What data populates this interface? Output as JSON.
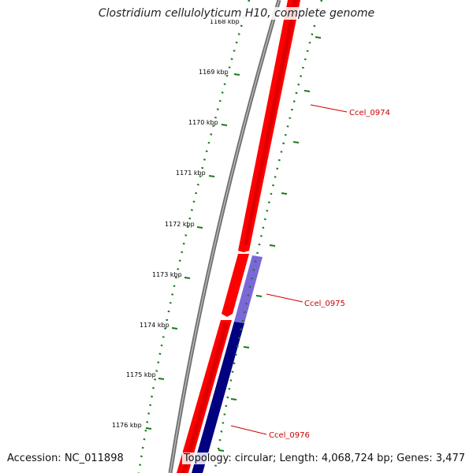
{
  "title": "Clostridium cellulolyticum H10, complete genome",
  "footer": {
    "accession": "Accession: NC_011898",
    "topology": "Topology: circular; Length: 4,068,724 bp; Genes: 3,477"
  },
  "colors": {
    "backbone": "#7a7a7a",
    "forward_gene": "#ff0000",
    "reverse_gene": "#000080",
    "reverse_gene_light": "#7b68d8",
    "tick": "#1a7a1a",
    "gene_label": "#cc0000"
  },
  "ticks": [
    {
      "label": "1168 kbp"
    },
    {
      "label": "1169 kbp"
    },
    {
      "label": "1170 kbp"
    },
    {
      "label": "1171 kbp"
    },
    {
      "label": "1172 kbp"
    },
    {
      "label": "1173 kbp"
    },
    {
      "label": "1174 kbp"
    },
    {
      "label": "1175 kbp"
    },
    {
      "label": "1176 kbp"
    }
  ],
  "genes": [
    {
      "label": "Ccel_0974",
      "strand": "forward"
    },
    {
      "label": "Ccel_0975",
      "strand": "reverse"
    },
    {
      "label": "Ccel_0976",
      "strand": "reverse"
    }
  ]
}
